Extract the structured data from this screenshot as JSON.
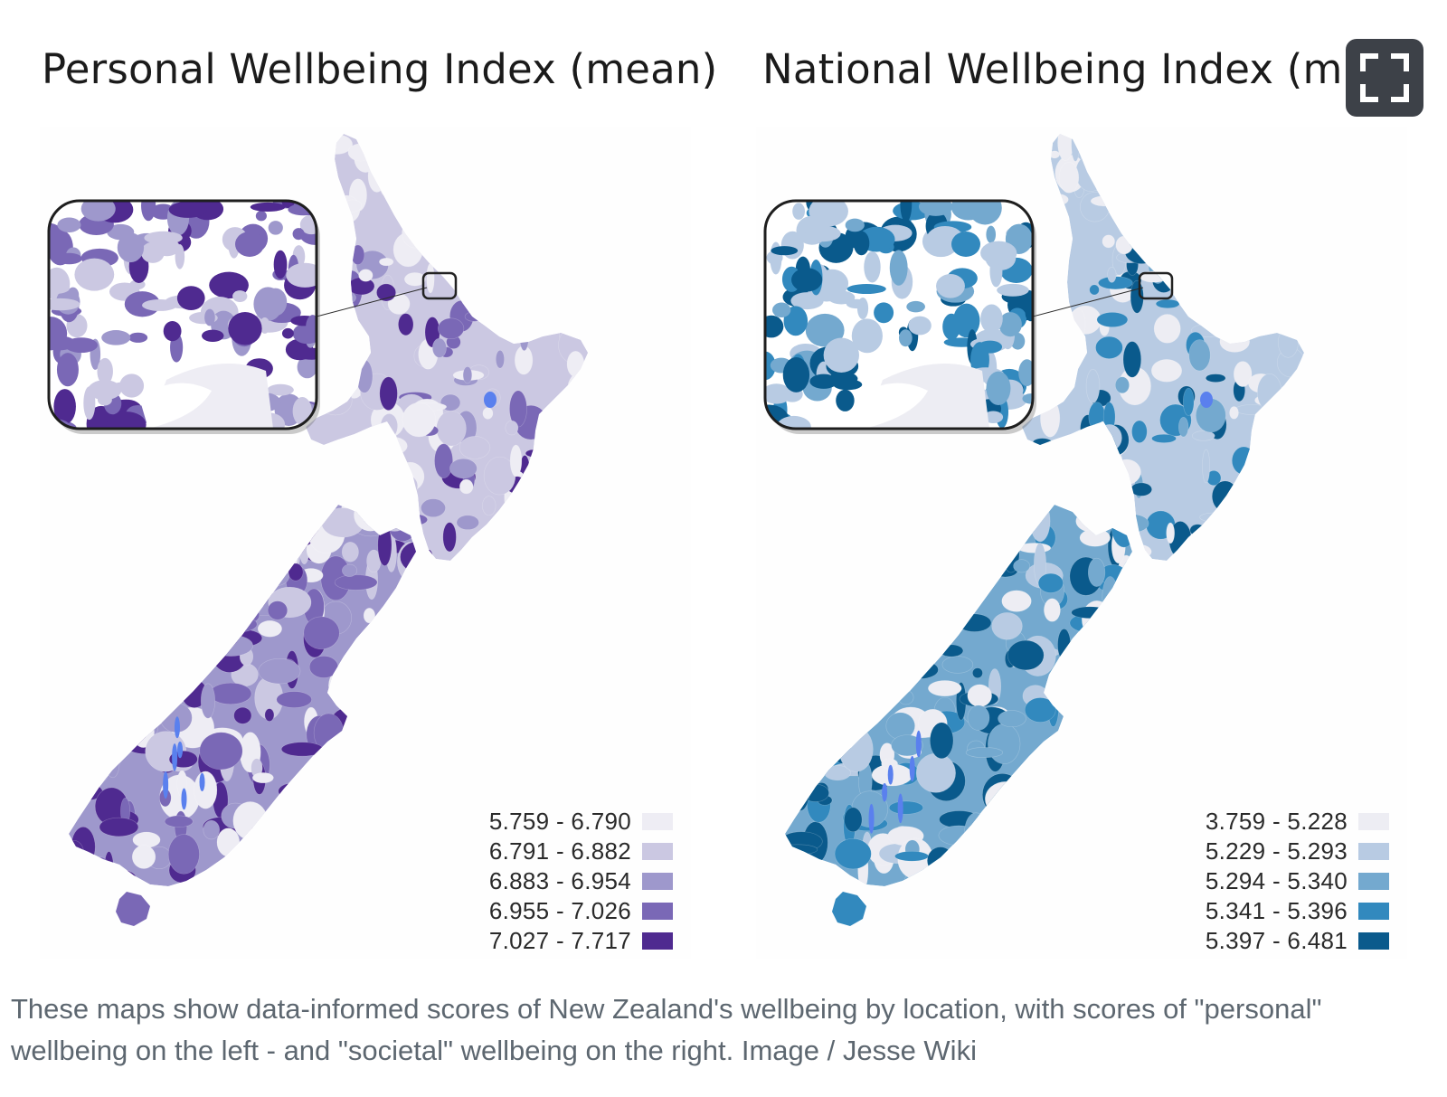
{
  "figure": {
    "left_map": {
      "title": "Personal Wellbeing Index (mean)",
      "legend": [
        {
          "label": "5.759 - 6.790",
          "color": "#eeedf4"
        },
        {
          "label": "6.791 - 6.882",
          "color": "#cbc8e2"
        },
        {
          "label": "6.883 - 6.954",
          "color": "#9e98cc"
        },
        {
          "label": "6.955 - 7.026",
          "color": "#7a68b6"
        },
        {
          "label": "7.027 - 7.717",
          "color": "#4f2a90"
        }
      ]
    },
    "right_map": {
      "title": "National Wellbeing Index (mean)",
      "legend": [
        {
          "label": "3.759 - 5.228",
          "color": "#ededf3"
        },
        {
          "label": "5.229 - 5.293",
          "color": "#b8cbe3"
        },
        {
          "label": "5.294 - 5.340",
          "color": "#74a9cf"
        },
        {
          "label": "5.341 - 5.396",
          "color": "#3289be"
        },
        {
          "label": "5.397 - 6.481",
          "color": "#0a5a8c"
        }
      ]
    },
    "water_color": "#5a80ee",
    "fullscreen_icon": "fullscreen-icon"
  },
  "caption": "These maps show data-informed scores of New Zealand's wellbeing by location, with scores of \"personal\" wellbeing on the left - and \"societal\" wellbeing on the right. Image / Jesse Wiki"
}
